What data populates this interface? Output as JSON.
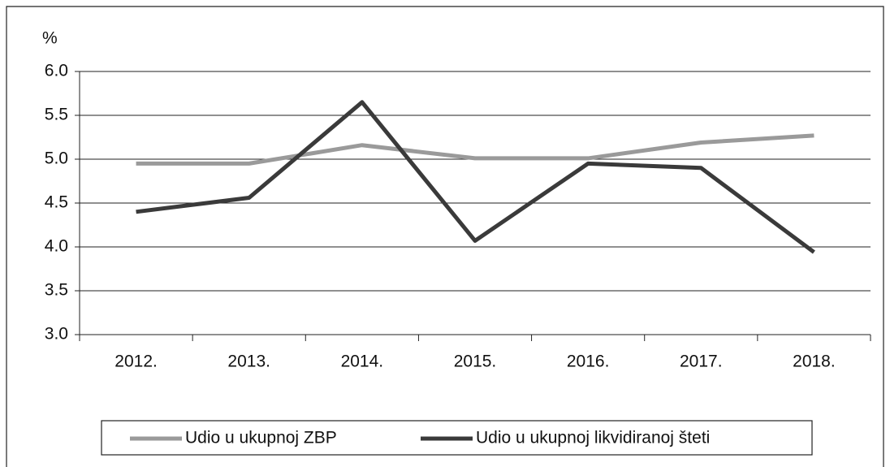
{
  "chart_data": {
    "type": "line",
    "y_unit": "%",
    "categories": [
      "2012.",
      "2013.",
      "2014.",
      "2015.",
      "2016.",
      "2017.",
      "2018."
    ],
    "series": [
      {
        "name": "Udio u ukupnoj ZBP",
        "color": "#9a9a9a",
        "values": [
          4.95,
          4.95,
          5.16,
          5.01,
          5.01,
          5.19,
          5.27
        ]
      },
      {
        "name": "Udio u ukupnoj likvidiranoj šteti",
        "color": "#3a3a3a",
        "values": [
          4.4,
          4.56,
          5.65,
          4.07,
          4.95,
          4.9,
          3.94
        ]
      }
    ],
    "ylim": [
      3.0,
      6.0
    ],
    "yticks": [
      {
        "value": 3,
        "label": "3.0"
      },
      {
        "value": 3.5,
        "label": "3.5"
      },
      {
        "value": 4,
        "label": "4.0"
      },
      {
        "value": 4.5,
        "label": "4.5"
      },
      {
        "value": 5,
        "label": "5.0"
      },
      {
        "value": 5.5,
        "label": "5.5"
      },
      {
        "value": 6,
        "label": "6.0"
      }
    ],
    "grid": true,
    "legend": "bottom"
  }
}
